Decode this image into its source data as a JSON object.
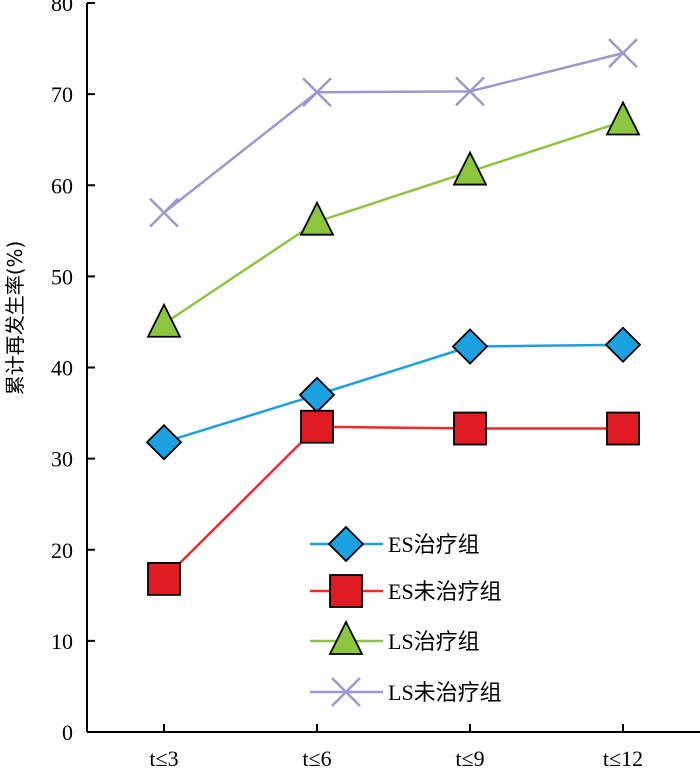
{
  "chart_data": {
    "type": "line",
    "categories": [
      "t≤3",
      "t≤6",
      "t≤9",
      "t≤12"
    ],
    "ylabel": "累计再发生率(%)",
    "xlabel": "",
    "ylim": [
      0,
      80
    ],
    "yticks": [
      0,
      10,
      20,
      30,
      40,
      50,
      60,
      70,
      80
    ],
    "grid": false,
    "legend_position": "lower-right",
    "series": [
      {
        "name": "ES治疗组",
        "marker": "diamond",
        "color": "#1ba1e2",
        "marker_fill": "#1ba1e2",
        "values": [
          31.8,
          37.0,
          42.3,
          42.5
        ]
      },
      {
        "name": "ES未治疗组",
        "marker": "square",
        "color": "#ee2a2a",
        "marker_fill": "#e11b22",
        "values": [
          16.8,
          33.5,
          33.3,
          33.3
        ]
      },
      {
        "name": "LS治疗组",
        "marker": "triangle",
        "color": "#8cc63f",
        "marker_fill": "#8cc63f",
        "values": [
          44.8,
          56.0,
          61.5,
          67.0
        ]
      },
      {
        "name": "LS未治疗组",
        "marker": "x",
        "color": "#9d98d0",
        "marker_fill": "#9d98d0",
        "values": [
          57.0,
          70.2,
          70.3,
          74.5
        ]
      }
    ]
  }
}
